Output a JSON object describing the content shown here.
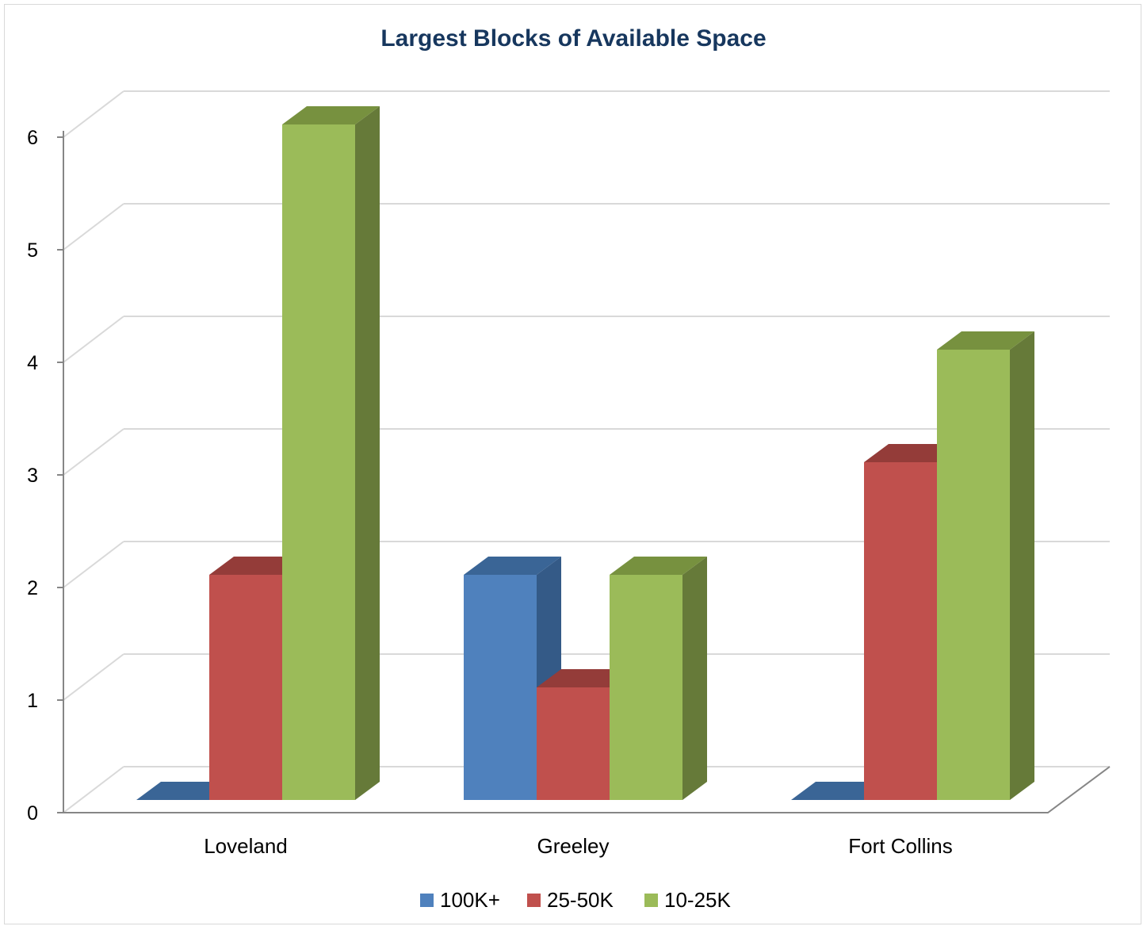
{
  "chart_data": {
    "type": "bar",
    "title": "Largest Blocks of Available Space",
    "xlabel": "",
    "ylabel": "",
    "categories": [
      "Loveland",
      "Greeley",
      "Fort Collins"
    ],
    "series": [
      {
        "name": "100K+",
        "values": [
          0,
          2,
          0
        ],
        "color": "#4f81bd",
        "side": "#345a87",
        "top": "#3a6596"
      },
      {
        "name": "25-50K",
        "values": [
          2,
          1,
          3
        ],
        "color": "#c0504d",
        "side": "#8a3735",
        "top": "#943c39"
      },
      {
        "name": "10-25K",
        "values": [
          6,
          2,
          4
        ],
        "color": "#9bbb59",
        "side": "#667a39",
        "top": "#77913f"
      }
    ],
    "y_ticks": [
      "0",
      "1",
      "2",
      "3",
      "4",
      "5",
      "6"
    ],
    "ylim": [
      0,
      6
    ],
    "grid": true,
    "legend_position": "bottom",
    "style": "3d-clustered-column"
  }
}
